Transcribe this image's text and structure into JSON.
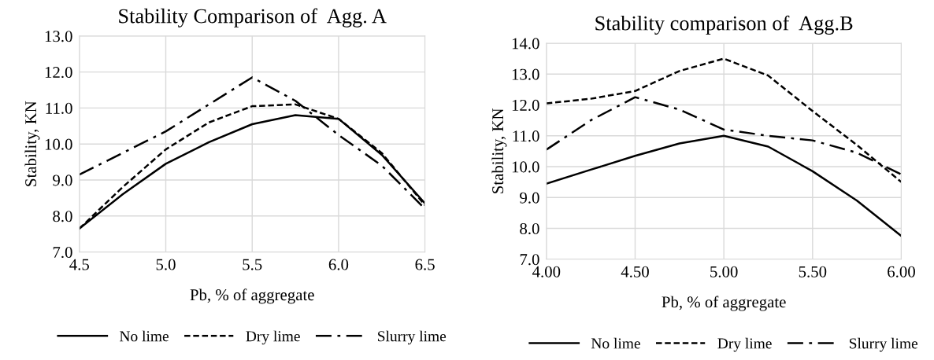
{
  "chart_data": [
    {
      "type": "line",
      "title": "Stability Comparison of  Agg. A",
      "xlabel": "Pb, % of aggregate",
      "ylabel": "Stability, KN",
      "x": [
        4.5,
        4.75,
        5.0,
        5.25,
        5.5,
        5.75,
        6.0,
        6.25,
        6.5
      ],
      "series": [
        {
          "name": "No lime",
          "color": "#000000",
          "line_style": "solid",
          "values": [
            7.65,
            8.6,
            9.45,
            10.05,
            10.55,
            10.8,
            10.7,
            9.7,
            8.35
          ]
        },
        {
          "name": "Dry lime",
          "color": "#000000",
          "line_style": "dashed",
          "values": [
            7.65,
            8.8,
            9.85,
            10.6,
            11.05,
            11.1,
            10.7,
            9.75,
            8.3
          ]
        },
        {
          "name": "Slurry lime",
          "color": "#000000",
          "line_style": "dashdot",
          "values": [
            9.15,
            9.75,
            10.35,
            11.1,
            11.85,
            11.2,
            10.25,
            9.4,
            8.2
          ]
        }
      ],
      "xlim": [
        4.5,
        6.5
      ],
      "xticks": [
        4.5,
        {
          "value": 5,
          "label": "5.0"
        },
        5.5,
        {
          "value": 6,
          "label": "6.0"
        },
        6.5
      ],
      "ylim": [
        7,
        13
      ],
      "yticks": [
        {
          "value": 7,
          "label": "7.0"
        },
        {
          "value": 8,
          "label": "8.0"
        },
        {
          "value": 9,
          "label": "9.0"
        },
        {
          "value": 10,
          "label": "10.0"
        },
        {
          "value": 11,
          "label": "11.0"
        },
        {
          "value": 12,
          "label": "12.0"
        },
        {
          "value": 13,
          "label": "13.0"
        }
      ],
      "grid": true,
      "legend": "bottom",
      "marker": "none"
    },
    {
      "type": "line",
      "title": "Stability comparison of  Agg.B",
      "xlabel": "Pb, % of aggregate",
      "ylabel": "Stability, KN",
      "x": [
        4.0,
        4.25,
        4.5,
        4.75,
        5.0,
        5.25,
        5.5,
        5.75,
        6.0
      ],
      "series": [
        {
          "name": "No lime",
          "color": "#000000",
          "line_style": "solid",
          "values": [
            9.45,
            9.9,
            10.35,
            10.75,
            11.0,
            10.65,
            9.85,
            8.9,
            7.75
          ]
        },
        {
          "name": "Dry lime",
          "color": "#000000",
          "line_style": "dashed",
          "values": [
            12.05,
            12.2,
            12.45,
            13.1,
            13.5,
            12.95,
            11.8,
            10.7,
            9.5
          ]
        },
        {
          "name": "Slurry lime",
          "color": "#000000",
          "line_style": "dashdot",
          "values": [
            10.55,
            11.5,
            12.25,
            11.85,
            11.2,
            11.0,
            10.85,
            10.45,
            9.75
          ]
        }
      ],
      "xlim": [
        4.0,
        6.0
      ],
      "xticks": [
        {
          "value": 4,
          "label": "4.00"
        },
        {
          "value": 4.5,
          "label": "4.50"
        },
        {
          "value": 5,
          "label": "5.00"
        },
        {
          "value": 5.5,
          "label": "5.50"
        },
        {
          "value": 6,
          "label": "6.00"
        }
      ],
      "ylim": [
        7,
        14
      ],
      "yticks": [
        {
          "value": 7,
          "label": "7.0"
        },
        {
          "value": 8,
          "label": "8.0"
        },
        {
          "value": 9,
          "label": "9.0"
        },
        {
          "value": 10,
          "label": "10.0"
        },
        {
          "value": 11,
          "label": "11.0"
        },
        {
          "value": 12,
          "label": "12.0"
        },
        {
          "value": 13,
          "label": "13.0"
        },
        {
          "value": 14,
          "label": "14.0"
        }
      ],
      "grid": true,
      "legend": "bottom",
      "marker": "none"
    }
  ]
}
